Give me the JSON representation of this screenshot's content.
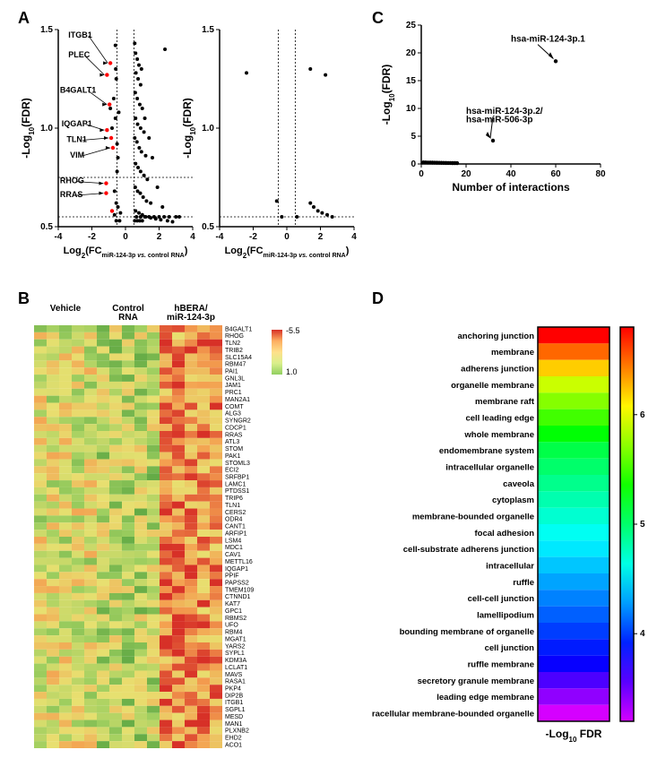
{
  "panel_labels": {
    "A": "A",
    "B": "B",
    "C": "C",
    "D": "D"
  },
  "volcano": {
    "xlabel_line1": "Log",
    "xlabel_sub": "2",
    "xlabel_rest": "(FC",
    "xlabel_mir": "miR-124-3p ",
    "xlabel_vs": "vs.",
    "xlabel_end": " control RNA",
    "xlabel_close": ")",
    "ylabel_pre": "-Log",
    "ylabel_sub": "10",
    "ylabel_rest": "(FDR)",
    "left": {
      "xlim": [
        -4,
        4
      ],
      "ylim": [
        0.5,
        1.5
      ],
      "xticks": [
        -4,
        -2,
        0,
        2,
        4
      ],
      "yticks": [
        0.5,
        1.0,
        1.5
      ],
      "threshold_x": [
        -0.5,
        0.5
      ],
      "threshold_y": [
        0.55,
        0.75
      ],
      "callouts": [
        {
          "label": "ITGB1",
          "lx": -3.4,
          "ly": 1.46,
          "tx": -0.9,
          "ty": 1.33
        },
        {
          "label": "PLEC",
          "lx": -3.4,
          "ly": 1.36,
          "tx": -1.1,
          "ty": 1.27
        },
        {
          "label": "B4GALT1",
          "lx": -3.9,
          "ly": 1.18,
          "tx": -0.95,
          "ty": 1.12
        },
        {
          "label": "IQGAP1",
          "lx": -3.8,
          "ly": 1.01,
          "tx": -1.1,
          "ty": 0.99
        },
        {
          "label": "TLN1",
          "lx": -3.5,
          "ly": 0.93,
          "tx": -0.85,
          "ty": 0.95
        },
        {
          "label": "VIM",
          "lx": -3.3,
          "ly": 0.85,
          "tx": -0.75,
          "ty": 0.9
        },
        {
          "label": "RHOG",
          "lx": -3.9,
          "ly": 0.72,
          "tx": -1.15,
          "ty": 0.72
        },
        {
          "label": "RRAS",
          "lx": -3.9,
          "ly": 0.65,
          "tx": -1.15,
          "ty": 0.67
        }
      ],
      "red_points": [
        [
          -0.9,
          1.33
        ],
        [
          -1.1,
          1.27
        ],
        [
          -0.95,
          1.12
        ],
        [
          -1.1,
          0.99
        ],
        [
          -0.85,
          0.95
        ],
        [
          -0.75,
          0.9
        ],
        [
          -1.15,
          0.72
        ],
        [
          -1.15,
          0.67
        ],
        [
          -0.8,
          0.58
        ]
      ],
      "black_points": [
        [
          -0.6,
          1.42
        ],
        [
          -0.55,
          1.25
        ],
        [
          -0.7,
          1.15
        ],
        [
          -0.6,
          1.05
        ],
        [
          -0.5,
          0.92
        ],
        [
          -0.4,
          1.08
        ],
        [
          -0.45,
          0.85
        ],
        [
          -0.5,
          0.78
        ],
        [
          -0.55,
          0.62
        ],
        [
          -0.3,
          0.57
        ],
        [
          -0.65,
          0.56
        ],
        [
          -0.8,
          1.0
        ],
        [
          -0.58,
          1.3
        ],
        [
          0.55,
          1.43
        ],
        [
          0.6,
          1.38
        ],
        [
          0.7,
          1.35
        ],
        [
          0.8,
          1.32
        ],
        [
          0.62,
          1.28
        ],
        [
          0.75,
          1.25
        ],
        [
          0.9,
          1.22
        ],
        [
          0.58,
          1.18
        ],
        [
          0.7,
          1.15
        ],
        [
          0.85,
          1.12
        ],
        [
          1.0,
          1.1
        ],
        [
          0.6,
          1.05
        ],
        [
          0.72,
          1.02
        ],
        [
          0.9,
          1.0
        ],
        [
          1.1,
          0.98
        ],
        [
          0.55,
          0.95
        ],
        [
          0.68,
          0.93
        ],
        [
          0.82,
          0.9
        ],
        [
          0.95,
          0.88
        ],
        [
          1.2,
          0.86
        ],
        [
          0.6,
          0.82
        ],
        [
          0.75,
          0.8
        ],
        [
          0.9,
          0.78
        ],
        [
          1.1,
          0.76
        ],
        [
          1.3,
          0.74
        ],
        [
          0.58,
          0.7
        ],
        [
          0.72,
          0.68
        ],
        [
          0.88,
          0.67
        ],
        [
          1.05,
          0.65
        ],
        [
          1.25,
          0.63
        ],
        [
          1.5,
          0.62
        ],
        [
          0.6,
          0.58
        ],
        [
          0.8,
          0.57
        ],
        [
          1.0,
          0.56
        ],
        [
          1.2,
          0.55
        ],
        [
          1.5,
          0.545
        ],
        [
          1.8,
          0.54
        ],
        [
          2.1,
          0.535
        ],
        [
          2.5,
          0.53
        ],
        [
          2.8,
          0.525
        ],
        [
          0.65,
          0.55
        ],
        [
          0.9,
          0.55
        ],
        [
          1.15,
          0.55
        ],
        [
          1.4,
          0.55
        ],
        [
          1.7,
          0.55
        ],
        [
          2.0,
          0.55
        ],
        [
          2.3,
          0.55
        ],
        [
          2.6,
          0.55
        ],
        [
          3.0,
          0.55
        ],
        [
          3.2,
          0.55
        ],
        [
          2.35,
          1.4
        ],
        [
          0.95,
          1.3
        ],
        [
          1.15,
          1.05
        ],
        [
          1.4,
          0.95
        ],
        [
          1.6,
          0.85
        ],
        [
          1.9,
          0.7
        ],
        [
          2.2,
          0.6
        ],
        [
          -0.9,
          1.1
        ],
        [
          -0.65,
          0.68
        ],
        [
          -0.45,
          0.6
        ],
        [
          0.55,
          0.53
        ],
        [
          0.7,
          0.53
        ],
        [
          0.85,
          0.53
        ],
        [
          1.0,
          0.53
        ],
        [
          -0.35,
          0.53
        ],
        [
          -0.55,
          0.53
        ]
      ]
    },
    "right": {
      "xlim": [
        -4,
        4
      ],
      "ylim": [
        0.5,
        1.5
      ],
      "xticks": [
        -4,
        -2,
        0,
        2,
        4
      ],
      "yticks": [
        0.5,
        1.0,
        1.5
      ],
      "threshold_x": [
        -0.5,
        0.5
      ],
      "threshold_y": [
        0.55
      ],
      "black_points": [
        [
          -2.4,
          1.28
        ],
        [
          1.4,
          1.3
        ],
        [
          2.3,
          1.27
        ],
        [
          -0.6,
          0.63
        ],
        [
          1.4,
          0.62
        ],
        [
          1.6,
          0.6
        ],
        [
          1.85,
          0.58
        ],
        [
          2.1,
          0.57
        ],
        [
          2.4,
          0.56
        ],
        [
          2.7,
          0.55
        ],
        [
          -0.3,
          0.55
        ],
        [
          0.6,
          0.55
        ]
      ]
    }
  },
  "panelC": {
    "xlabel": "Number of interactions",
    "ylabel_pre": "-Log",
    "ylabel_sub": "10",
    "ylabel_rest": "(FDR)",
    "xlim": [
      0,
      80
    ],
    "ylim": [
      0,
      25
    ],
    "xticks": [
      0,
      20,
      40,
      60,
      80
    ],
    "yticks": [
      0,
      5,
      10,
      15,
      20,
      25
    ],
    "callouts": [
      {
        "label": "hsa-miR-124-3p.1",
        "lx": 40,
        "ly": 22,
        "tx": 60,
        "ty": 18.5
      },
      {
        "label": "hsa-miR-124-3p.2/",
        "lx": 20,
        "ly": 9,
        "tx": 32,
        "ty": 4.2
      },
      {
        "label": "hsa-miR-506-3p",
        "lx": 20,
        "ly": 7.5
      }
    ],
    "points": [
      [
        60,
        18.5
      ],
      [
        32,
        4.2
      ],
      [
        1,
        0.3
      ],
      [
        2,
        0.28
      ],
      [
        3,
        0.26
      ],
      [
        4,
        0.25
      ],
      [
        5,
        0.24
      ],
      [
        6,
        0.23
      ],
      [
        7,
        0.22
      ],
      [
        8,
        0.21
      ],
      [
        9,
        0.2
      ],
      [
        10,
        0.19
      ],
      [
        11,
        0.18
      ],
      [
        12,
        0.17
      ],
      [
        13,
        0.17
      ],
      [
        14,
        0.16
      ],
      [
        15,
        0.16
      ],
      [
        16,
        0.15
      ]
    ]
  },
  "heatmap": {
    "groups": [
      "Vehicle",
      "Control\nRNA",
      "hBERA/\nmiR-124-3p"
    ],
    "cols_per_group": 5,
    "scale_label_top": "-5.5",
    "scale_label_bot": "1.0",
    "scale_colors": [
      "#d73027",
      "#fdae61",
      "#fee08b",
      "#d9ef8b",
      "#91cf60"
    ],
    "genes": [
      "B4GALT1",
      "RHOG",
      "TLN2",
      "TRIB2",
      "SLC15A4",
      "RBM47",
      "PAI1",
      "GNL3L",
      "JAM1",
      "PRC1",
      "MAN2A1",
      "COMT",
      "ALG3",
      "SYNGR2",
      "CDCP1",
      "RRAS",
      "ATL3",
      "STOM",
      "PAK1",
      "STOML3",
      "ECI2",
      "SRFBP1",
      "LAMC1",
      "PTDSS1",
      "TRIP6",
      "TLN1",
      "CERS2",
      "ODR4",
      "CANT1",
      "ARFIP1",
      "LSM4",
      "MDC1",
      "CAV1",
      "METTL16",
      "IQGAP1",
      "PPIF",
      "PAPSS2",
      "TMEM109",
      "CTNND1",
      "KAT7",
      "GPC1",
      "RBMS2",
      "UFO",
      "RBM4",
      "MGAT1",
      "YARS2",
      "SYPL1",
      "KDM3A",
      "LCLAT1",
      "MAVS",
      "RASA1",
      "PKP4",
      "DIP2B",
      "ITGB1",
      "SGPL1",
      "MESD",
      "MAN1",
      "PLXNB2",
      "EHD2",
      "ACO1"
    ]
  },
  "panelD": {
    "xlabel_pre": "-Log",
    "xlabel_sub": "10",
    "xlabel_rest": " FDR",
    "scale_ticks": [
      "4",
      "5",
      "6"
    ],
    "terms": [
      {
        "name": "anchoring junction",
        "val": 6.8
      },
      {
        "name": "membrane",
        "val": 6.5
      },
      {
        "name": "adherens junction",
        "val": 6.2
      },
      {
        "name": "organelle membrane",
        "val": 5.9
      },
      {
        "name": "membrane raft",
        "val": 5.7
      },
      {
        "name": "cell leading edge",
        "val": 5.5
      },
      {
        "name": "whole membrane",
        "val": 5.3
      },
      {
        "name": "endomembrane system",
        "val": 5.1
      },
      {
        "name": "intracellular organelle",
        "val": 5.0
      },
      {
        "name": "caveola",
        "val": 4.9
      },
      {
        "name": "cytoplasm",
        "val": 4.8
      },
      {
        "name": "membrane-bounded organelle",
        "val": 4.7
      },
      {
        "name": "focal adhesion",
        "val": 4.6
      },
      {
        "name": "cell-substrate adherens junction",
        "val": 4.5
      },
      {
        "name": "intracellular",
        "val": 4.4
      },
      {
        "name": "ruffle",
        "val": 4.3
      },
      {
        "name": "cell-cell junction",
        "val": 4.2
      },
      {
        "name": "lamellipodium",
        "val": 4.1
      },
      {
        "name": "bounding membrane of organelle",
        "val": 4.0
      },
      {
        "name": "cell junction",
        "val": 3.9
      },
      {
        "name": "ruffle membrane",
        "val": 3.8
      },
      {
        "name": "secretory granule membrane",
        "val": 3.6
      },
      {
        "name": "leading edge membrane",
        "val": 3.4
      },
      {
        "name": "intracellular membrane-bounded organelle",
        "val": 3.2
      }
    ],
    "color_low": "#ff00ff",
    "color_high": "#ff0000"
  }
}
